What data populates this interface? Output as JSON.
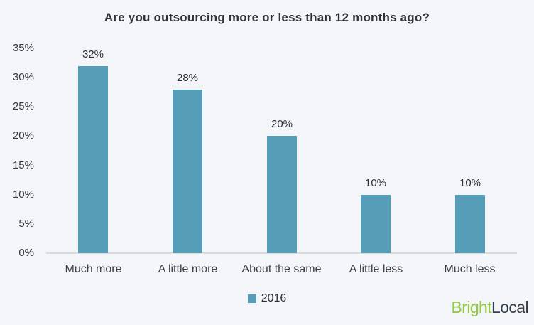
{
  "title": "Are you outsourcing more or less than 12 months ago?",
  "chart_data": {
    "type": "bar",
    "title": "Are you outsourcing more or less than 12 months ago?",
    "categories": [
      "Much more",
      "A little more",
      "About the same",
      "A little less",
      "Much less"
    ],
    "series": [
      {
        "name": "2016",
        "values": [
          32,
          28,
          20,
          10,
          10
        ]
      }
    ],
    "value_labels": [
      "32%",
      "28%",
      "20%",
      "10%",
      "10%"
    ],
    "xlabel": "",
    "ylabel": "",
    "ylim": [
      0,
      35
    ],
    "ytick_values": [
      0,
      5,
      10,
      15,
      20,
      25,
      30,
      35
    ],
    "ytick_labels": [
      "0%",
      "5%",
      "10%",
      "15%",
      "20%",
      "25%",
      "30%",
      "35%"
    ],
    "grid": false,
    "legend_position": "bottom-center"
  },
  "legend": {
    "label": "2016"
  },
  "branding": {
    "brand_first": "Bright",
    "brand_second": "Local"
  },
  "colors": {
    "background": "#f4f5f9",
    "bar": "#569db8",
    "axis_line": "#d9dcdc",
    "title_text": "#30343a",
    "tick_text": "#33383e",
    "category_text": "#3b4046",
    "value_text": "#2b3036",
    "legend_text": "#2e3338",
    "brand_first_color": "#93c83e",
    "brand_second_color": "#343f49"
  }
}
